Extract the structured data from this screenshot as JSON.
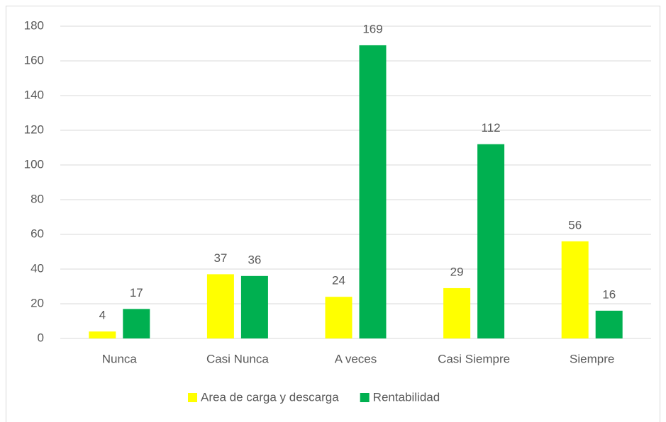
{
  "chart_data": {
    "type": "bar",
    "categories": [
      "Nunca",
      "Casi Nunca",
      "A veces",
      "Casi Siempre",
      "Siempre"
    ],
    "series": [
      {
        "name": "Area de carga y descarga",
        "color": "#ffff00",
        "values": [
          4,
          37,
          24,
          29,
          56
        ]
      },
      {
        "name": "Rentabilidad",
        "color": "#00b050",
        "values": [
          17,
          36,
          169,
          112,
          16
        ]
      }
    ],
    "ylim": [
      0,
      180
    ],
    "yticks": [
      0,
      20,
      40,
      60,
      80,
      100,
      120,
      140,
      160,
      180
    ],
    "grid": true,
    "legend": "bottom"
  }
}
